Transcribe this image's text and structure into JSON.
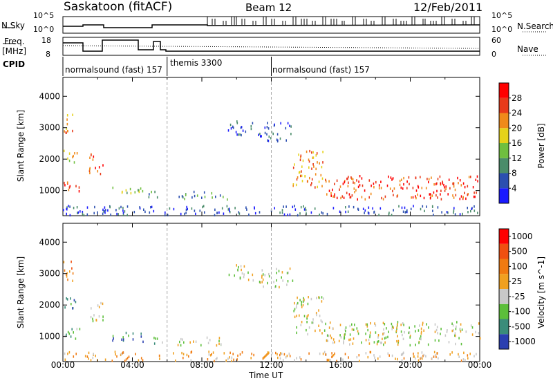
{
  "header": {
    "site": "Saskatoon (fitACF)",
    "beam": "Beam 12",
    "date": "12/Feb/2011"
  },
  "nsky_panel": {
    "left_label": "N.Sky",
    "right_label": "N.Search",
    "left_ticks": [
      "10^5",
      "10^0"
    ],
    "right_ticks": [
      "10^5",
      "10^0"
    ]
  },
  "freq_panel": {
    "left_label": "Freq.",
    "left_unit": "[MHz]",
    "right_label": "Nave",
    "left_ticks": [
      "18",
      "8"
    ],
    "right_ticks": [
      "60",
      "0"
    ]
  },
  "cpid": {
    "label": "CPID",
    "segments": [
      {
        "name": "normalsound (fast) 157",
        "start_hour": 0
      },
      {
        "name": "themis 3300",
        "start_hour": 6
      },
      {
        "name": "normalsound (fast) 157",
        "start_hour": 12
      }
    ]
  },
  "chart_data": [
    {
      "type": "heatmap",
      "title": "Power",
      "ylabel": "Slant Range [km]",
      "xlabel": "",
      "ylim": [
        200,
        4600
      ],
      "yticks": [
        "1000",
        "2000",
        "3000",
        "4000"
      ],
      "colorbar": {
        "label": "Power [dB]",
        "ticks": [
          "4",
          "8",
          "12",
          "16",
          "20",
          "24",
          "28"
        ],
        "colors": [
          "#1a1aff",
          "#2b4fb0",
          "#4a8c6a",
          "#6fbf3f",
          "#e6d21a",
          "#f08a1a",
          "#e83a1a",
          "#ff0000"
        ]
      },
      "scatter_regions": [
        {
          "t0": 0.0,
          "t1": 0.6,
          "r0": 2800,
          "r1": 3500,
          "level": 5
        },
        {
          "t0": 0.0,
          "t1": 0.9,
          "r0": 1900,
          "r1": 2300,
          "level": 4
        },
        {
          "t0": 0.0,
          "t1": 1.1,
          "r0": 950,
          "r1": 1300,
          "level": 6
        },
        {
          "t0": 1.5,
          "t1": 2.3,
          "r0": 1500,
          "r1": 2200,
          "level": 6
        },
        {
          "t0": 2.8,
          "t1": 4.6,
          "r0": 850,
          "r1": 1150,
          "level": 3
        },
        {
          "t0": 4.8,
          "t1": 5.8,
          "r0": 800,
          "r1": 1000,
          "level": 2
        },
        {
          "t0": 6.5,
          "t1": 9.5,
          "r0": 750,
          "r1": 1000,
          "level": 2
        },
        {
          "t0": 9.5,
          "t1": 11.0,
          "r0": 2800,
          "r1": 3300,
          "level": 1
        },
        {
          "t0": 11.2,
          "t1": 13.2,
          "r0": 2600,
          "r1": 3200,
          "level": 1
        },
        {
          "t0": 13.2,
          "t1": 15.0,
          "r0": 1100,
          "r1": 2300,
          "level": 5
        },
        {
          "t0": 15.0,
          "t1": 24.0,
          "r0": 750,
          "r1": 1500,
          "level": 6
        },
        {
          "t0": 0.0,
          "t1": 24.0,
          "r0": 250,
          "r1": 550,
          "level": 1
        }
      ]
    },
    {
      "type": "heatmap",
      "title": "Velocity",
      "ylabel": "Slant Range [km]",
      "xlabel": "Time UT",
      "ylim": [
        200,
        4600
      ],
      "yticks": [
        "1000",
        "2000",
        "3000",
        "4000"
      ],
      "xticks": [
        "00:00",
        "04:00",
        "08:00",
        "12:00",
        "16:00",
        "20:00",
        "00:00"
      ],
      "colorbar": {
        "label": "Velocity [m s^-1]",
        "ticks": [
          "1000",
          "500",
          "100",
          "25",
          "-25",
          "-100",
          "-500",
          "-1000"
        ],
        "colors": [
          "#2a3fb0",
          "#3a8c7a",
          "#5cbf3a",
          "#c8c8c8",
          "#f0a020",
          "#f07a10",
          "#f05010",
          "#ff0000"
        ]
      },
      "scatter_regions": [
        {
          "t0": 0.0,
          "t1": 0.6,
          "r0": 2800,
          "r1": 3500,
          "level": 5
        },
        {
          "t0": 0.0,
          "t1": 0.9,
          "r0": 1900,
          "r1": 2300,
          "level": 1
        },
        {
          "t0": 0.0,
          "t1": 1.1,
          "r0": 950,
          "r1": 1300,
          "level": 2
        },
        {
          "t0": 1.5,
          "t1": 2.3,
          "r0": 1500,
          "r1": 2200,
          "level": 3
        },
        {
          "t0": 2.8,
          "t1": 4.6,
          "r0": 850,
          "r1": 1150,
          "level": 1
        },
        {
          "t0": 4.8,
          "t1": 5.8,
          "r0": 800,
          "r1": 1000,
          "level": 2
        },
        {
          "t0": 6.5,
          "t1": 9.5,
          "r0": 750,
          "r1": 1000,
          "level": 3
        },
        {
          "t0": 9.5,
          "t1": 11.0,
          "r0": 2800,
          "r1": 3300,
          "level": 3
        },
        {
          "t0": 11.2,
          "t1": 13.2,
          "r0": 2600,
          "r1": 3200,
          "level": 3
        },
        {
          "t0": 13.2,
          "t1": 15.0,
          "r0": 1100,
          "r1": 2300,
          "level": 3
        },
        {
          "t0": 15.0,
          "t1": 24.0,
          "r0": 750,
          "r1": 1500,
          "level": 3
        },
        {
          "t0": 0.0,
          "t1": 24.0,
          "r0": 250,
          "r1": 550,
          "level": 4
        }
      ]
    }
  ]
}
